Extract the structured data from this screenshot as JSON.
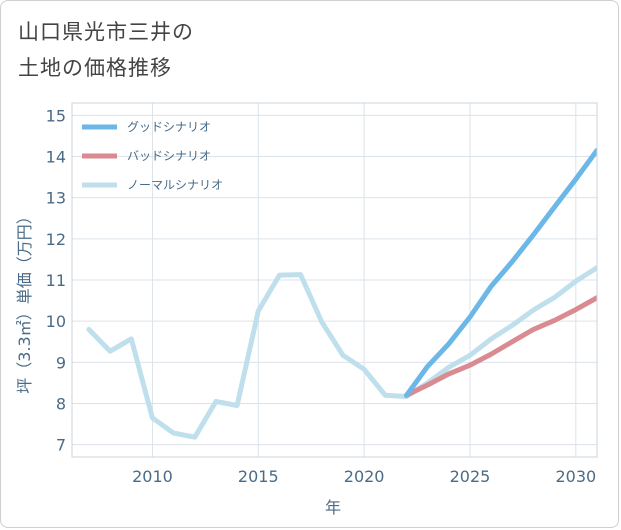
{
  "title_lines": [
    "山口県光市三井の",
    "土地の価格推移"
  ],
  "chart_data": {
    "type": "line",
    "title": "山口県光市三井の土地の価格推移",
    "xlabel": "年",
    "ylabel": "坪（3.3㎡）単価（万円）",
    "xlim": [
      2006.2,
      2031
    ],
    "ylim": [
      6.7,
      15.3
    ],
    "xticks": [
      2010,
      2015,
      2020,
      2025,
      2030
    ],
    "yticks": [
      7,
      8,
      9,
      10,
      11,
      12,
      13,
      14,
      15
    ],
    "grid": true,
    "legend_position": "top-left",
    "series": [
      {
        "name": "グッドシナリオ",
        "color": "#6bb7e8",
        "x": [
          2022,
          2023,
          2024,
          2025,
          2026,
          2027,
          2028,
          2029,
          2030,
          2031
        ],
        "y": [
          8.2,
          8.9,
          9.45,
          10.1,
          10.85,
          11.45,
          12.1,
          12.78,
          13.45,
          14.15
        ]
      },
      {
        "name": "バッドシナリオ",
        "color": "#d98b91",
        "x": [
          2022,
          2023,
          2024,
          2025,
          2026,
          2027,
          2028,
          2029,
          2030,
          2031
        ],
        "y": [
          8.2,
          8.45,
          8.72,
          8.93,
          9.2,
          9.5,
          9.8,
          10.02,
          10.28,
          10.57
        ]
      },
      {
        "name": "ノーマルシナリオ",
        "color": "#bfdfec",
        "x": [
          2007,
          2008,
          2009,
          2010,
          2011,
          2012,
          2013,
          2014,
          2015,
          2016,
          2017,
          2018,
          2019,
          2020,
          2021,
          2022,
          2023,
          2024,
          2025,
          2026,
          2027,
          2028,
          2029,
          2030,
          2031
        ],
        "y": [
          9.8,
          9.27,
          9.57,
          7.65,
          7.28,
          7.18,
          8.05,
          7.95,
          10.25,
          11.12,
          11.13,
          9.98,
          9.17,
          8.83,
          8.2,
          8.17,
          8.5,
          8.88,
          9.17,
          9.57,
          9.9,
          10.27,
          10.58,
          10.97,
          11.3
        ]
      }
    ]
  }
}
